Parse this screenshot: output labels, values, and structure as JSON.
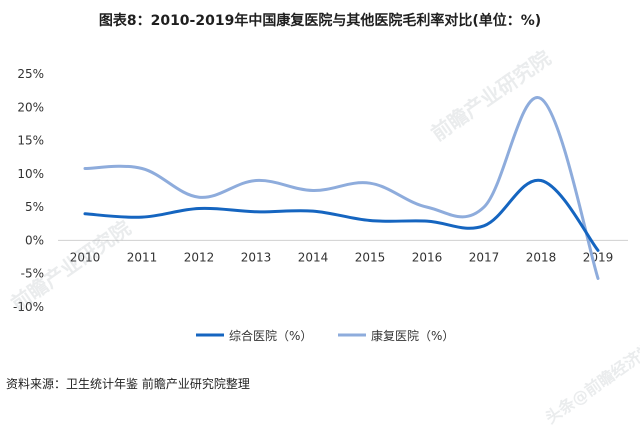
{
  "chart_data": {
    "type": "line",
    "title": "图表8：2010-2019年中国康复医院与其他医院毛利率对比(单位：%)",
    "categories": [
      "2010",
      "2011",
      "2012",
      "2013",
      "2014",
      "2015",
      "2016",
      "2017",
      "2018",
      "2019"
    ],
    "ylim": [
      -10,
      25
    ],
    "yticks": [
      "25%",
      "20%",
      "15%",
      "10%",
      "5%",
      "0%",
      "-5%",
      "-10%"
    ],
    "ytick_values": [
      25,
      20,
      15,
      10,
      5,
      0,
      -5,
      -10
    ],
    "grid": false,
    "legend_position": "bottom",
    "series": [
      {
        "name": "综合医院（%）",
        "color": "#1565c0",
        "values": [
          4.0,
          3.5,
          4.8,
          4.3,
          4.4,
          3.0,
          2.9,
          2.2,
          9.0,
          -1.5
        ]
      },
      {
        "name": "康复医院（%）",
        "color": "#8eacdc",
        "values": [
          10.8,
          10.8,
          6.5,
          9.0,
          7.5,
          8.6,
          5.0,
          5.0,
          21.3,
          -5.7
        ]
      }
    ]
  },
  "footer": {
    "source": "资料来源：卫生统计年鉴 前瞻产业研究院整理"
  },
  "watermarks": {
    "logo_text": "前瞻产业研究院",
    "corner_text": "头条@前瞻经济学人APP"
  }
}
